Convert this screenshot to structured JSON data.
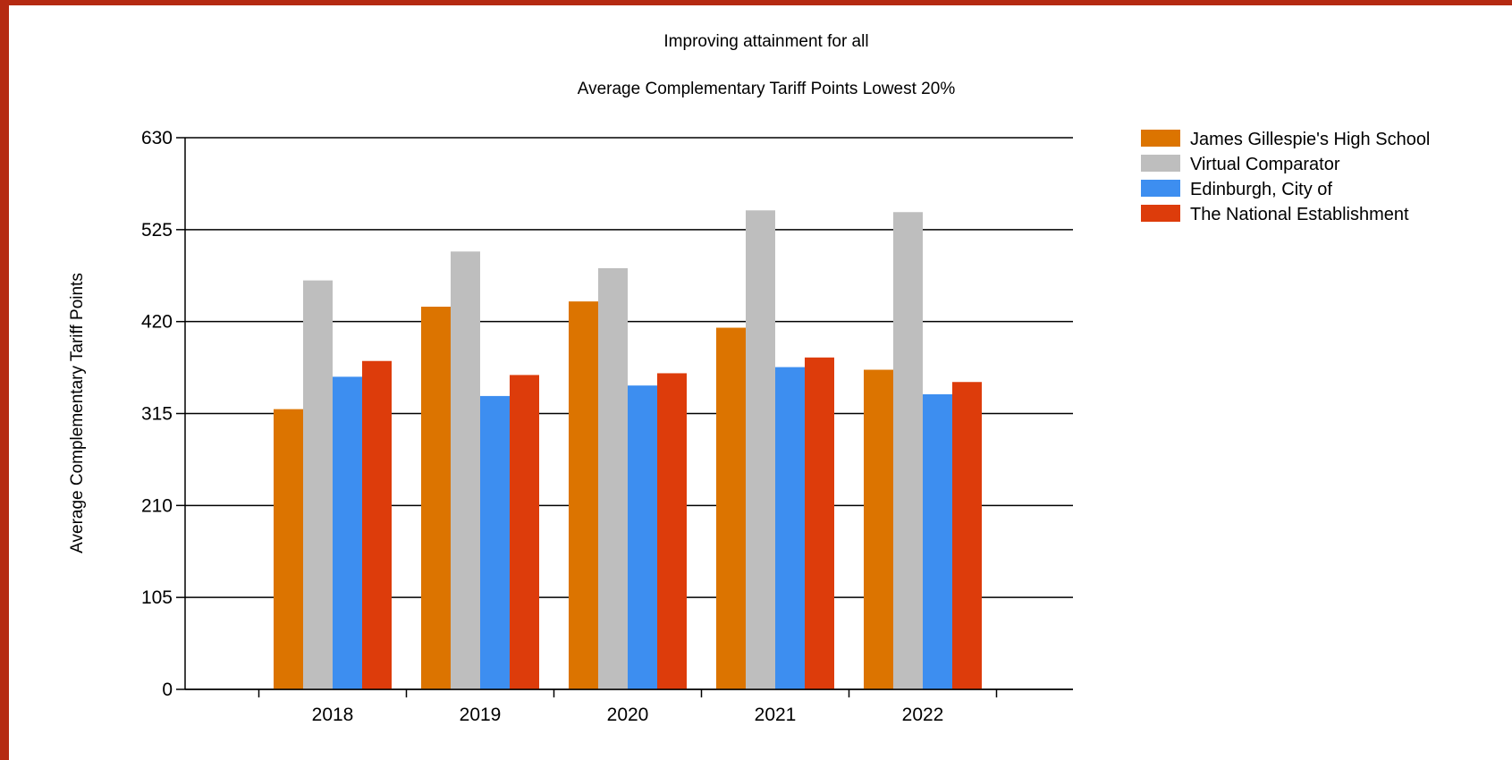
{
  "chart_data": {
    "type": "bar",
    "title": "Improving attainment for all",
    "subtitle": "Average Complementary Tariff Points Lowest 20%",
    "xlabel": "",
    "ylabel": "Average Complementary Tariff Points",
    "ylim": [
      0,
      630
    ],
    "yticks": [
      "0",
      "105",
      "210",
      "315",
      "420",
      "525",
      "630"
    ],
    "grid": true,
    "legend_position": "top-right",
    "categories": [
      "2018",
      "2019",
      "2020",
      "2021",
      "2022"
    ],
    "series": [
      {
        "name": "James Gillespie's High School",
        "color": "#dc7400",
        "values": [
          320,
          437,
          443,
          413,
          365
        ]
      },
      {
        "name": "Virtual Comparator",
        "color": "#bebebe",
        "values": [
          467,
          500,
          481,
          547,
          545
        ]
      },
      {
        "name": "Edinburgh, City of",
        "color": "#3d8ef0",
        "values": [
          357,
          335,
          347,
          368,
          337
        ]
      },
      {
        "name": "The National Establishment",
        "color": "#dd3c0b",
        "values": [
          375,
          359,
          361,
          379,
          351
        ]
      }
    ]
  }
}
